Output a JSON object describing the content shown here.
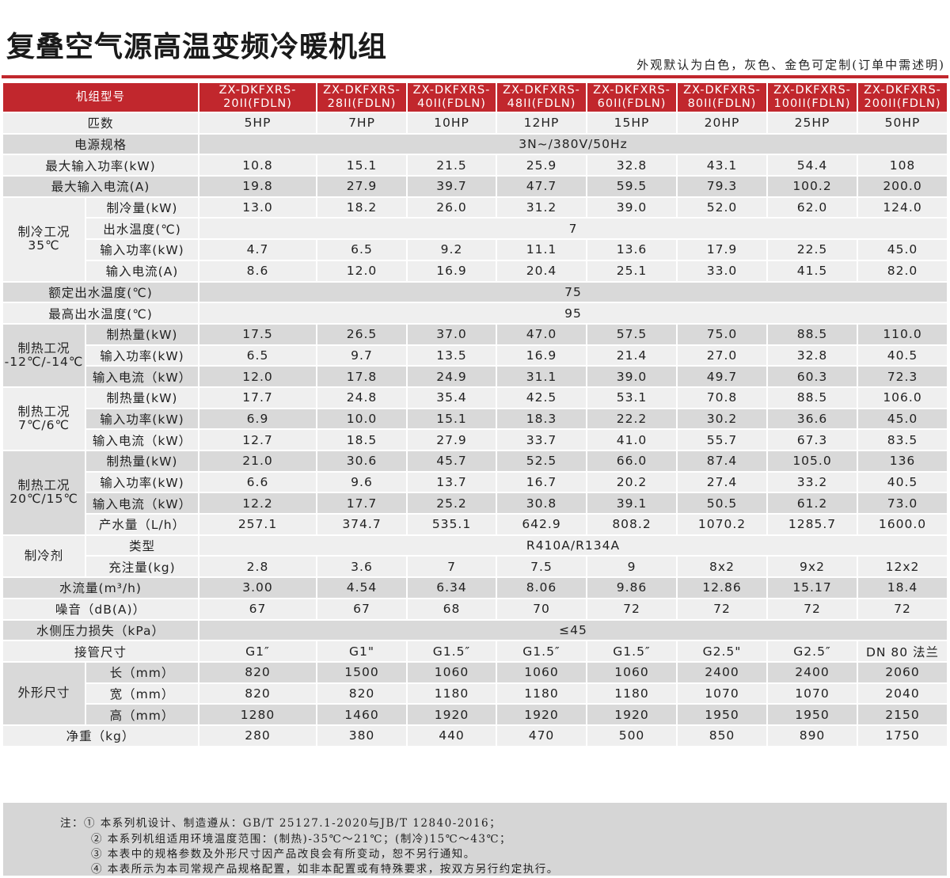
{
  "title": "复叠空气源高温变频冷暖机组",
  "subtitle": "外观默认为白色，灰色、金色可定制(订单中需述明)",
  "table": {
    "header_label": "机组型号",
    "models": [
      "ZX-DKFXRS-\n20II(FDLN)",
      "ZX-DKFXRS-\n28II(FDLN)",
      "ZX-DKFXRS-\n40II(FDLN)",
      "ZX-DKFXRS-\n48II(FDLN)",
      "ZX-DKFXRS-\n60II(FDLN)",
      "ZX-DKFXRS-\n80II(FDLN)",
      "ZX-DKFXRS-\n100II(FDLN)",
      "ZX-DKFXRS-\n200II(FDLN)"
    ],
    "rows": [
      {
        "label": "匹数",
        "values": [
          "5HP",
          "7HP",
          "10HP",
          "12HP",
          "15HP",
          "20HP",
          "25HP",
          "50HP"
        ]
      },
      {
        "label": "电源规格",
        "span": "3N~/380V/50Hz"
      },
      {
        "label": "最大输入功率(kW)",
        "values": [
          "10.8",
          "15.1",
          "21.5",
          "25.9",
          "32.8",
          "43.1",
          "54.4",
          "108"
        ]
      },
      {
        "label": "最大输入电流(A)",
        "values": [
          "19.8",
          "27.9",
          "39.7",
          "47.7",
          "59.5",
          "79.3",
          "100.2",
          "200.0"
        ]
      },
      {
        "group": "制冷工况\n35℃",
        "label": "制冷量(kW)",
        "values": [
          "13.0",
          "18.2",
          "26.0",
          "31.2",
          "39.0",
          "52.0",
          "62.0",
          "124.0"
        ]
      },
      {
        "label": "出水温度(℃)",
        "span": "7"
      },
      {
        "label": "输入功率(kW)",
        "values": [
          "4.7",
          "6.5",
          "9.2",
          "11.1",
          "13.6",
          "17.9",
          "22.5",
          "45.0"
        ]
      },
      {
        "label": "输入电流(A)",
        "values": [
          "8.6",
          "12.0",
          "16.9",
          "20.4",
          "25.1",
          "33.0",
          "41.5",
          "82.0"
        ]
      },
      {
        "label": "额定出水温度(℃)",
        "span": "75"
      },
      {
        "label": "最高出水温度(℃)",
        "span": "95"
      },
      {
        "group": "制热工况\n-12℃/-14℃",
        "label": "制热量(kW)",
        "values": [
          "17.5",
          "26.5",
          "37.0",
          "47.0",
          "57.5",
          "75.0",
          "88.5",
          "110.0"
        ]
      },
      {
        "label": "输入功率(kW)",
        "values": [
          "6.5",
          "9.7",
          "13.5",
          "16.9",
          "21.4",
          "27.0",
          "32.8",
          "40.5"
        ]
      },
      {
        "label": "输入电流（kW）",
        "values": [
          "12.0",
          "17.8",
          "24.9",
          "31.1",
          "39.0",
          "49.7",
          "60.3",
          "72.3"
        ]
      },
      {
        "group": "制热工况\n7℃/6℃",
        "label": "制热量(kW)",
        "values": [
          "17.7",
          "24.8",
          "35.4",
          "42.5",
          "53.1",
          "70.8",
          "88.5",
          "106.0"
        ]
      },
      {
        "label": "输入功率(kW)",
        "values": [
          "6.9",
          "10.0",
          "15.1",
          "18.3",
          "22.2",
          "30.2",
          "36.6",
          "45.0"
        ]
      },
      {
        "label": "输入电流（kW）",
        "values": [
          "12.7",
          "18.5",
          "27.9",
          "33.7",
          "41.0",
          "55.7",
          "67.3",
          "83.5"
        ]
      },
      {
        "group": "制热工况\n20℃/15℃",
        "label": "制热量(kW)",
        "values": [
          "21.0",
          "30.6",
          "45.7",
          "52.5",
          "66.0",
          "87.4",
          "105.0",
          "136"
        ]
      },
      {
        "label": "输入功率(kW)",
        "values": [
          "6.6",
          "9.6",
          "13.7",
          "16.7",
          "20.2",
          "27.4",
          "33.2",
          "40.5"
        ]
      },
      {
        "label": "输入电流（kW）",
        "values": [
          "12.2",
          "17.7",
          "25.2",
          "30.8",
          "39.1",
          "50.5",
          "61.2",
          "73.0"
        ]
      },
      {
        "label": "产水量（L/h）",
        "values": [
          "257.1",
          "374.7",
          "535.1",
          "642.9",
          "808.2",
          "1070.2",
          "1285.7",
          "1600.0"
        ]
      },
      {
        "group": "制冷剂",
        "label": "类型",
        "span": "R410A/R134A"
      },
      {
        "label": "充注量(kg)",
        "values": [
          "2.8",
          "3.6",
          "7",
          "7.5",
          "9",
          "8x2",
          "9x2",
          "12x2"
        ]
      },
      {
        "label": "水流量(m³/h)",
        "values": [
          "3.00",
          "4.54",
          "6.34",
          "8.06",
          "9.86",
          "12.86",
          "15.17",
          "18.4"
        ]
      },
      {
        "label": "噪音（dB(A)）",
        "values": [
          "67",
          "67",
          "68",
          "70",
          "72",
          "72",
          "72",
          "72"
        ]
      },
      {
        "label": "水侧压力损失（kPa）",
        "span": "≤45"
      },
      {
        "label": "接管尺寸",
        "values": [
          "G1″",
          "G1\"",
          "G1.5″",
          "G1.5″",
          "G1.5″",
          "G2.5\"",
          "G2.5″",
          "DN 80 法兰"
        ]
      },
      {
        "group": "外形尺寸",
        "label": "长（mm）",
        "values": [
          "820",
          "1500",
          "1060",
          "1060",
          "1060",
          "2400",
          "2400",
          "2060"
        ]
      },
      {
        "label": "宽（mm）",
        "values": [
          "820",
          "820",
          "1180",
          "1180",
          "1180",
          "1070",
          "1070",
          "2040"
        ]
      },
      {
        "label": "高（mm）",
        "values": [
          "1280",
          "1460",
          "1920",
          "1920",
          "1920",
          "1950",
          "1950",
          "2150"
        ]
      },
      {
        "label": "净重（kg）",
        "values": [
          "280",
          "380",
          "440",
          "470",
          "500",
          "850",
          "890",
          "1750"
        ]
      }
    ]
  },
  "notes": [
    "注：① 本系列机设计、制造遵从：GB/T 25127.1-2020与JB/T 12840-2016；",
    "② 本系列机组适用环境温度范围：(制热)-35℃～21℃；(制冷)15℃～43℃；",
    "③ 本表中的规格参数及外形尺寸因产品改良会有所变动，恕不另行通知。",
    "④ 本表所示为本司常规产品规格配置，如非本配置或有特殊要求，按双方另行约定执行。"
  ]
}
